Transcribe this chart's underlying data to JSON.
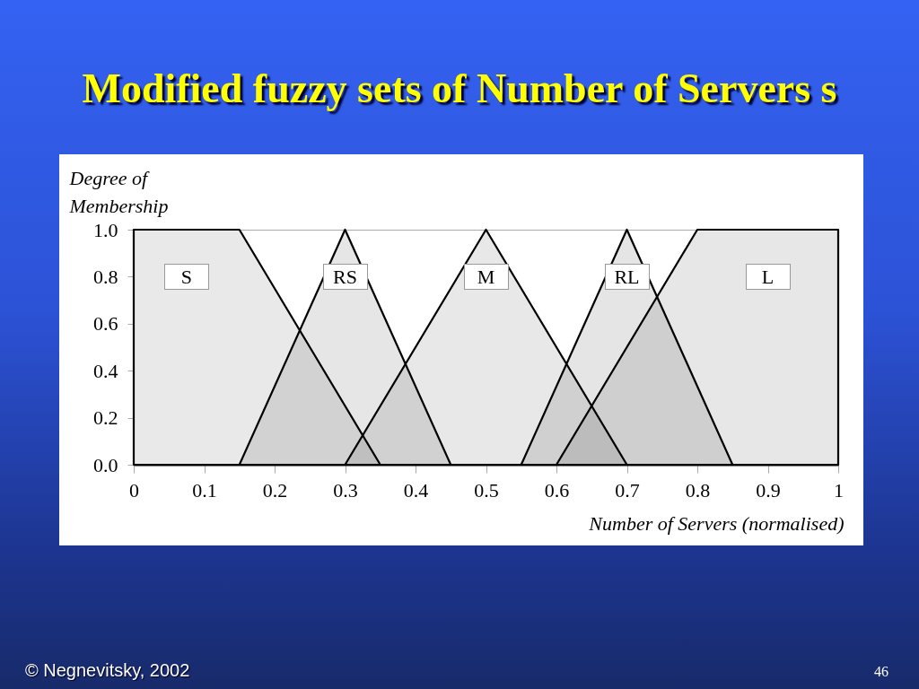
{
  "chart_data": {
    "type": "area",
    "title": "Modified fuzzy sets of Number of Servers s",
    "xlabel": "Number of Servers (normalised)",
    "ylabel": "Degree of Membership",
    "series": [
      {
        "name": "S",
        "color": "#e9e9e9",
        "x": [
          0,
          0,
          0.15,
          0.35
        ],
        "values": [
          0,
          1,
          1,
          0
        ]
      },
      {
        "name": "RS",
        "color": "#e6e6e6",
        "x": [
          0.15,
          0.3,
          0.45
        ],
        "values": [
          0,
          1,
          0
        ]
      },
      {
        "name": "M",
        "color": "#e8e8e8",
        "x": [
          0.3,
          0.5,
          0.7
        ],
        "values": [
          0,
          1,
          0
        ]
      },
      {
        "name": "RL",
        "color": "#e5e5e5",
        "x": [
          0.55,
          0.7,
          0.85
        ],
        "values": [
          0,
          1,
          0
        ]
      },
      {
        "name": "L",
        "color": "#e7e7e7",
        "x": [
          0.6,
          0.8,
          1,
          1
        ],
        "values": [
          0,
          1,
          1,
          0
        ]
      }
    ],
    "xlim": [
      0,
      1
    ],
    "xticks": [
      0,
      0.1,
      0.2,
      0.3,
      0.4,
      0.5,
      0.6,
      0.7,
      0.8,
      0.9,
      1
    ],
    "ylim": [
      0,
      1
    ],
    "yticks": [
      {
        "value": 0,
        "label": "0.0"
      },
      0.2,
      0.4,
      0.6,
      0.8,
      {
        "value": 1,
        "label": "1.0"
      }
    ],
    "annotations": [
      "© Negnevitsky, 2002",
      "46"
    ]
  }
}
